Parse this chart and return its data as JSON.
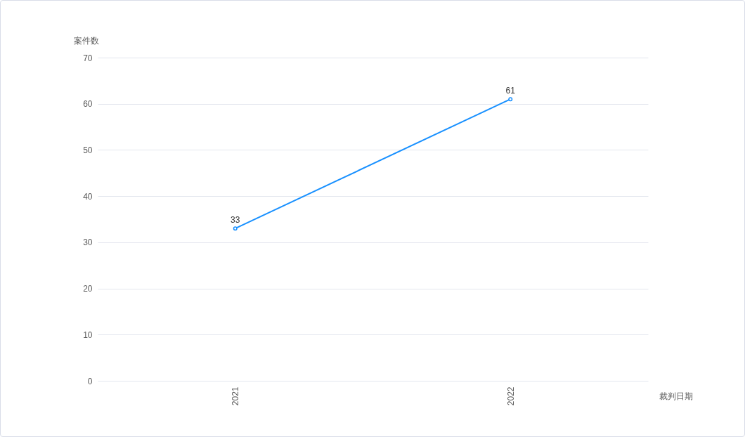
{
  "chart_data": {
    "type": "line",
    "xlabel": "裁判日期",
    "ylabel": "案件数",
    "categories": [
      "2021",
      "2022"
    ],
    "series": [
      {
        "color": "#1890ff",
        "values": [
          33,
          61
        ]
      }
    ],
    "ylim": [
      0,
      70
    ],
    "yticks": [
      0,
      10,
      20,
      30,
      40,
      50,
      60,
      70
    ],
    "grid": "y",
    "legend": false,
    "marker": "circle",
    "line_style": "solid",
    "data_labels": true
  }
}
